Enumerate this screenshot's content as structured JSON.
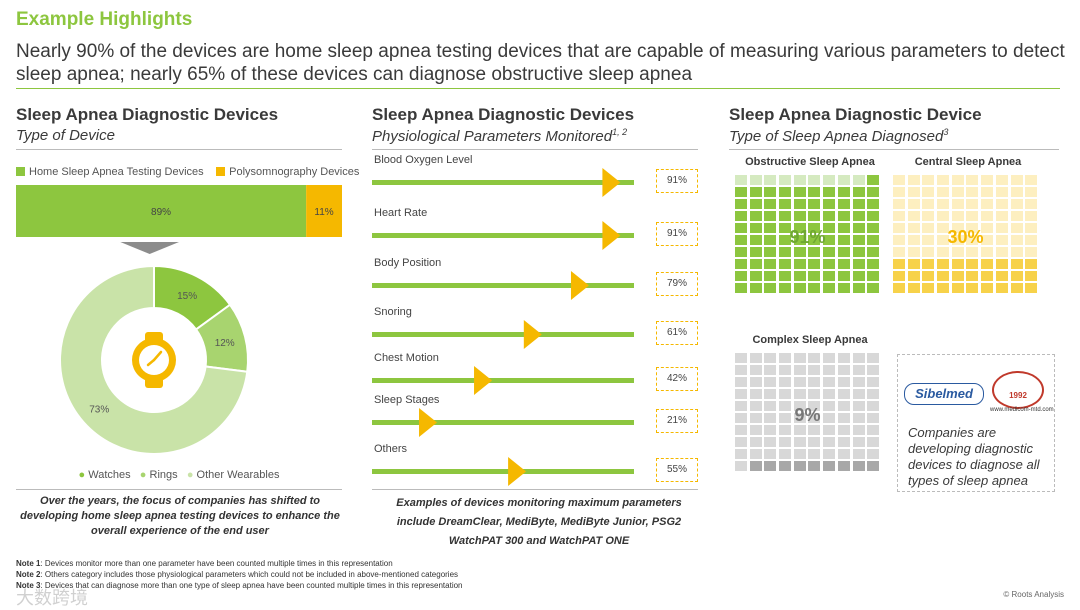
{
  "header": {
    "title": "Example Highlights",
    "subtitle": "Nearly 90% of the devices are home sleep apnea testing devices that are capable of measuring various parameters to detect sleep apnea; nearly 65% of these devices can diagnose obstructive sleep apnea"
  },
  "colors": {
    "green": "#8dc63f",
    "yellow": "#f5b800",
    "light_green": "#d5eac0",
    "gray": "#d0d0d0",
    "dark_gray": "#a8a8a8",
    "light_yellow": "#fdefc0"
  },
  "section1": {
    "title": "Sleep Apnea Diagnostic Devices",
    "subtitle": "Type of Device",
    "caption": "Over the years, the focus of companies has shifted to developing home sleep apnea testing devices to enhance the overall experience of the end user"
  },
  "section2": {
    "title": "Sleep Apnea Diagnostic Devices",
    "subtitle": "Physiological Parameters Monitored",
    "subtitle_sup": "1, 2",
    "caption": "Examples of devices monitoring maximum parameters include DreamClear, MediByte, MediByte Junior, PSG2 WatchPAT 300 and WatchPAT ONE"
  },
  "section3": {
    "title": "Sleep Apnea Diagnostic Device",
    "subtitle": "Type of Sleep Apnea Diagnosed",
    "subtitle_sup": "3",
    "logo_text": "Sibelmed",
    "badge_text": "1992",
    "badge_url": "www.medicom-mtd.com",
    "note": "Companies are developing diagnostic devices to diagnose all types of sleep apnea"
  },
  "chart_data": [
    {
      "type": "bar",
      "stacked": true,
      "orientation": "horizontal",
      "series": [
        {
          "name": "Home Sleep Apnea Testing Devices",
          "values": [
            89
          ],
          "label": "89%"
        },
        {
          "name": "Polysomnography Devices",
          "values": [
            11
          ],
          "label": "11%"
        }
      ]
    },
    {
      "type": "pie",
      "donut": true,
      "icon": "watch-icon",
      "slices": [
        {
          "name": "Watches",
          "value": 15,
          "label": "15%"
        },
        {
          "name": "Rings",
          "value": 12,
          "label": "12%"
        },
        {
          "name": "Other Wearables",
          "value": 73,
          "label": "73%"
        }
      ]
    },
    {
      "type": "bar",
      "orientation": "horizontal",
      "categories": [
        "Blood Oxygen Level",
        "Heart Rate",
        "Body Position",
        "Snoring",
        "Chest Motion",
        "Sleep Stages",
        "Others"
      ],
      "values": [
        91,
        91,
        79,
        61,
        42,
        21,
        55
      ],
      "labels": [
        "91%",
        "91%",
        "79%",
        "61%",
        "42%",
        "21%",
        "55%"
      ]
    },
    {
      "type": "waffle",
      "panels": [
        {
          "name": "Obstructive Sleep Apnea",
          "value": 91,
          "label": "91%",
          "color": "#8dc63f",
          "bg": "#d5eac0",
          "text_color": "#6fa832"
        },
        {
          "name": "Central Sleep Apnea",
          "value": 30,
          "label": "30%",
          "color": "#f7d24a",
          "bg": "#fdefc0",
          "text_color": "#f5b800"
        },
        {
          "name": "Complex Sleep Apnea",
          "value": 9,
          "label": "9%",
          "color": "#a8a8a8",
          "bg": "#d8d8d8",
          "text_color": "#777777"
        }
      ]
    }
  ],
  "notes": [
    {
      "label": "Note 1",
      "text": ": Devices monitor more than one parameter have been counted multiple times in this representation"
    },
    {
      "label": "Note 2",
      "text": ": Others category includes those physiological parameters which could not be included in above-mentioned categories"
    },
    {
      "label": "Note 3",
      "text": ": Devices that can diagnose more than one type of sleep apnea have been counted multiple times in this representation"
    }
  ],
  "footer": {
    "copyright": "© Roots Analysis",
    "watermark": "大数跨境"
  }
}
